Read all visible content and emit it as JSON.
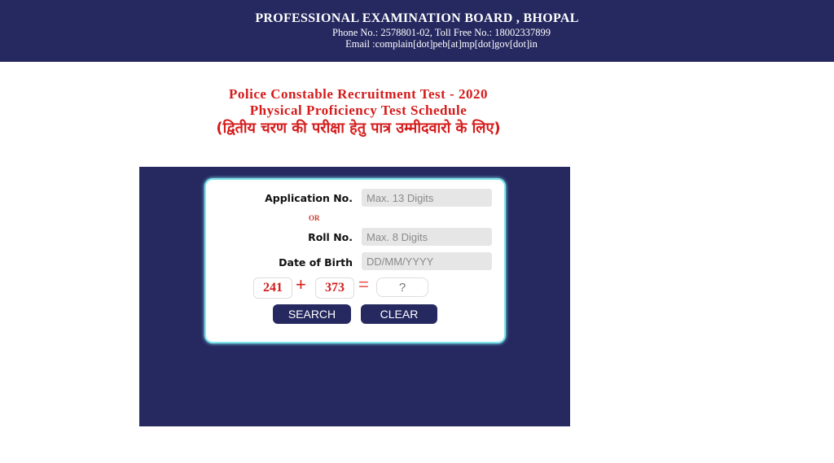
{
  "header": {
    "title": "PROFESSIONAL EXAMINATION BOARD , BHOPAL",
    "phone": "Phone No.: 2578801-02, Toll Free No.: 18002337899",
    "email": "Email :complain[dot]peb[at]mp[dot]gov[dot]in"
  },
  "titles": {
    "line1": "Police Constable Recruitment Test - 2020",
    "line2": "Physical Proficiency Test Schedule",
    "line3": "(द्वितीय चरण की परीक्षा हेतु पात्र उम्मीदवारो के लिए)"
  },
  "form": {
    "application_label": "Application No.",
    "application_placeholder": "Max. 13 Digits",
    "or_label": "OR",
    "roll_label": "Roll No.",
    "roll_placeholder": "Max. 8 Digits",
    "dob_label": "Date of Birth",
    "dob_placeholder": "DD/MM/YYYY",
    "captcha": {
      "a": "241",
      "plus": "+",
      "b": "373",
      "equals": "=",
      "answer_placeholder": "?"
    },
    "search_label": "SEARCH",
    "clear_label": "CLEAR"
  }
}
